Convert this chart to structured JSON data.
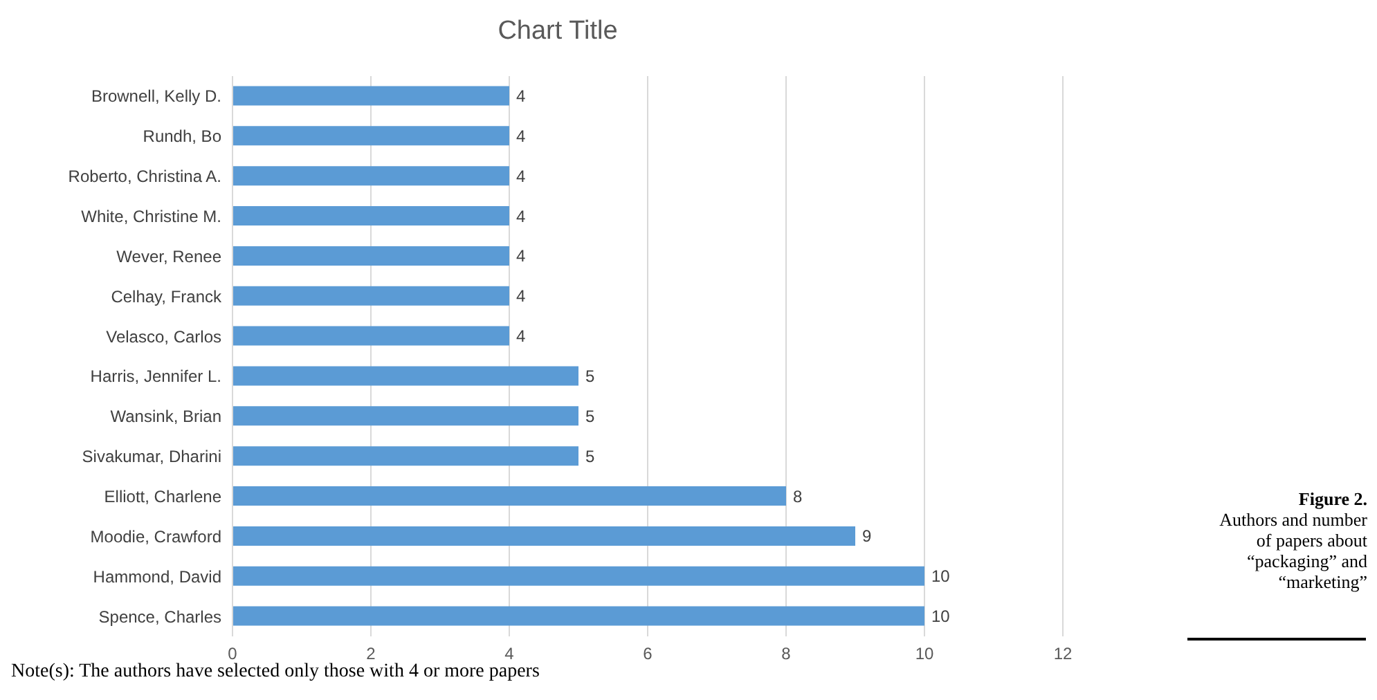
{
  "chart_data": {
    "type": "bar",
    "orientation": "horizontal",
    "title": "Chart Title",
    "categories": [
      "Brownell, Kelly D.",
      "Rundh, Bo",
      "Roberto, Christina A.",
      "White, Christine M.",
      "Wever, Renee",
      "Celhay, Franck",
      "Velasco, Carlos",
      "Harris, Jennifer L.",
      "Wansink, Brian",
      "Sivakumar, Dharini",
      "Elliott, Charlene",
      "Moodie, Crawford",
      "Hammond, David",
      "Spence, Charles"
    ],
    "values": [
      4,
      4,
      4,
      4,
      4,
      4,
      4,
      5,
      5,
      5,
      8,
      9,
      10,
      10
    ],
    "color": "#5b9bd5",
    "xlim": [
      0,
      12
    ],
    "xticks": [
      0,
      2,
      4,
      6,
      8,
      10,
      12
    ],
    "grid": "x",
    "data_labels": true,
    "legend": false,
    "annotations": [
      "Figure 2.",
      "Authors and number of papers about “packaging” and “marketing”",
      "Note(s): The authors have selected only those with 4 or more papers"
    ]
  }
}
